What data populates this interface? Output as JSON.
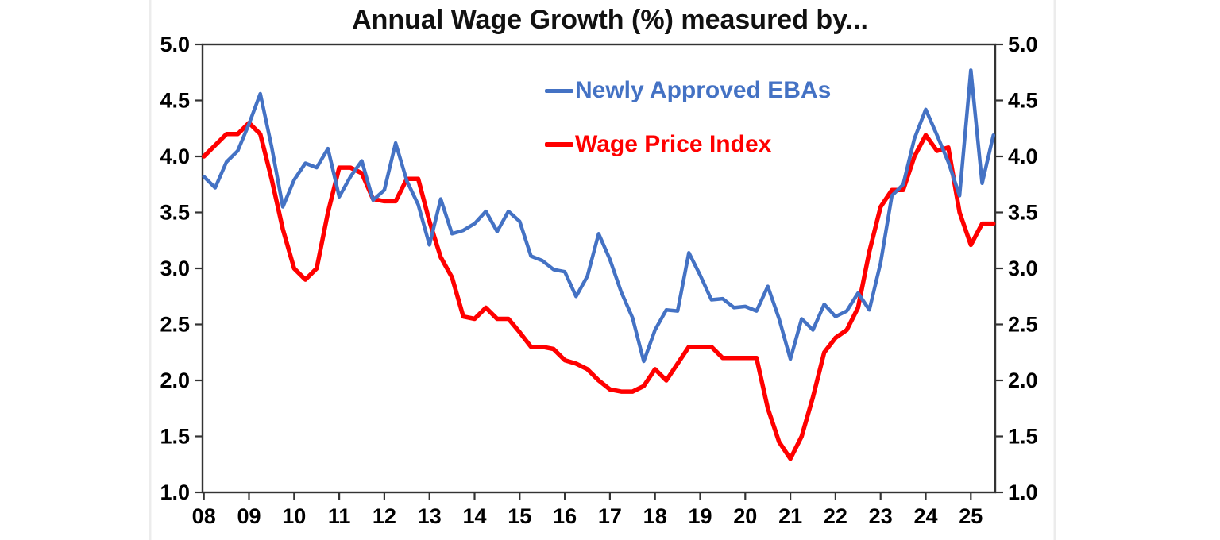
{
  "title": "Annual Wage Growth (%) measured by...",
  "legend": {
    "ebas_label": "Newly Approved EBAs",
    "wpi_label": "Wage Price Index"
  },
  "colors": {
    "ebas": "#4472C4",
    "wpi": "#FF0000",
    "axis": "#333333",
    "tick_text": "#000000",
    "title_text": "#111111",
    "background": "#FFFFFF",
    "artifact_line": "#ECECEC"
  },
  "chart_data": {
    "type": "line",
    "title": "Annual Wage Growth (%) measured by...",
    "xlabel": "",
    "ylabel": "",
    "grid": false,
    "legend_position": "top-center-inside",
    "ylim": [
      1.0,
      5.0
    ],
    "ytick_step": 0.5,
    "ytick_labels_both_sides": true,
    "x_start": 2008.0,
    "x_step": 0.25,
    "x_tick_years": [
      2008,
      2009,
      2010,
      2011,
      2012,
      2013,
      2014,
      2015,
      2016,
      2017,
      2018,
      2019,
      2020,
      2021,
      2022,
      2023,
      2024,
      2025
    ],
    "x_tick_labels": [
      "08",
      "09",
      "10",
      "11",
      "12",
      "13",
      "14",
      "15",
      "16",
      "17",
      "18",
      "19",
      "20",
      "21",
      "22",
      "23",
      "24",
      "25"
    ],
    "series": [
      {
        "name": "Newly Approved EBAs",
        "color": "#4472C4",
        "values": [
          3.82,
          3.72,
          3.95,
          4.05,
          4.29,
          4.56,
          4.09,
          3.55,
          3.79,
          3.94,
          3.9,
          4.07,
          3.64,
          3.82,
          3.96,
          3.61,
          3.7,
          4.12,
          3.78,
          3.57,
          3.21,
          3.62,
          3.31,
          3.34,
          3.4,
          3.51,
          3.33,
          3.51,
          3.42,
          3.11,
          3.07,
          2.99,
          2.97,
          2.75,
          2.93,
          3.31,
          3.08,
          2.79,
          2.56,
          2.17,
          2.45,
          2.63,
          2.62,
          3.14,
          2.94,
          2.72,
          2.73,
          2.65,
          2.66,
          2.62,
          2.84,
          2.55,
          2.19,
          2.55,
          2.45,
          2.68,
          2.57,
          2.62,
          2.78,
          2.63,
          3.05,
          3.65,
          3.75,
          4.16,
          4.42,
          4.19,
          3.95,
          3.65,
          4.77,
          3.76,
          4.19
        ]
      },
      {
        "name": "Wage Price Index",
        "color": "#FF0000",
        "values": [
          4.0,
          4.1,
          4.2,
          4.2,
          4.3,
          4.2,
          3.8,
          3.35,
          3.0,
          2.9,
          3.0,
          3.5,
          3.9,
          3.9,
          3.85,
          3.62,
          3.6,
          3.6,
          3.8,
          3.8,
          3.42,
          3.1,
          2.92,
          2.57,
          2.55,
          2.65,
          2.55,
          2.55,
          2.43,
          2.3,
          2.3,
          2.28,
          2.18,
          2.15,
          2.1,
          2.0,
          1.92,
          1.9,
          1.9,
          1.95,
          2.1,
          2.0,
          2.15,
          2.3,
          2.3,
          2.3,
          2.2,
          2.2,
          2.2,
          2.2,
          1.75,
          1.45,
          1.3,
          1.5,
          1.85,
          2.25,
          2.38,
          2.45,
          2.65,
          3.15,
          3.55,
          3.7,
          3.7,
          4.0,
          4.19,
          4.05,
          4.08,
          3.5,
          3.21,
          3.4,
          3.4
        ]
      }
    ]
  }
}
